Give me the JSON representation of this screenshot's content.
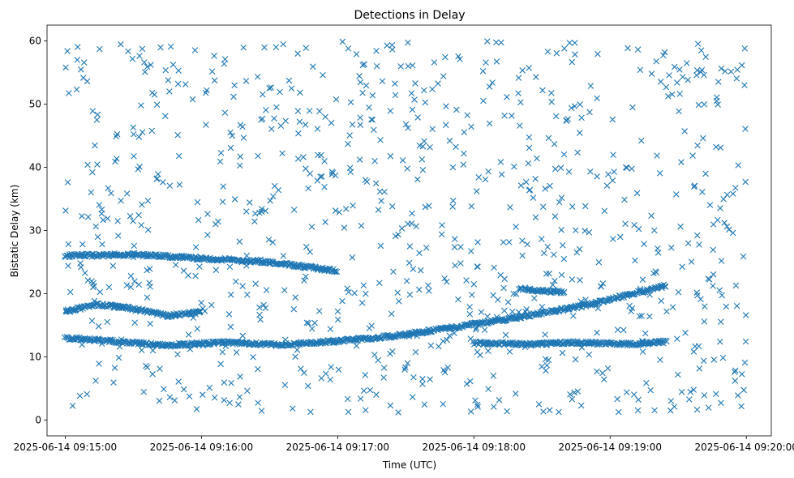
{
  "chart_data": {
    "type": "scatter",
    "title": "Detections in Delay",
    "xlabel": "Time (UTC)",
    "ylabel": "Bistatic Delay (km)",
    "marker": "x",
    "color": "#1f77b4",
    "grid": false,
    "ylim": [
      -2.5,
      62.5
    ],
    "xlim": [
      "2025-06-14 09:14:52",
      "2025-06-14 09:20:11"
    ],
    "x_ticks": [
      "2025-06-14 09:15:00",
      "2025-06-14 09:16:00",
      "2025-06-14 09:17:00",
      "2025-06-14 09:18:00",
      "2025-06-14 09:19:00",
      "2025-06-14 09:20:00"
    ],
    "y_ticks": [
      0,
      10,
      20,
      30,
      40,
      50,
      60
    ],
    "tracks": [
      {
        "x": [
          "2025-06-14 09:15:00",
          "2025-06-14 09:15:20",
          "2025-06-14 09:15:45",
          "2025-06-14 09:16:10",
          "2025-06-14 09:16:35",
          "2025-06-14 09:17:00",
          "2025-06-14 09:17:25",
          "2025-06-14 09:17:50",
          "2025-06-14 09:18:20",
          "2025-06-14 09:18:50",
          "2025-06-14 09:19:25"
        ],
        "y": [
          13.0,
          12.5,
          11.8,
          12.3,
          11.9,
          12.5,
          13.3,
          14.6,
          16.3,
          18.2,
          21.3
        ]
      },
      {
        "x": [
          "2025-06-14 09:15:00",
          "2025-06-14 09:15:15",
          "2025-06-14 09:15:30",
          "2025-06-14 09:15:45",
          "2025-06-14 09:16:00"
        ],
        "y": [
          17.2,
          18.3,
          17.6,
          16.5,
          17.1
        ]
      },
      {
        "x": [
          "2025-06-14 09:15:00",
          "2025-06-14 09:15:30",
          "2025-06-14 09:16:00",
          "2025-06-14 09:16:30",
          "2025-06-14 09:17:00"
        ],
        "y": [
          26.0,
          26.2,
          25.6,
          25.0,
          23.6
        ]
      },
      {
        "x": [
          "2025-06-14 09:18:00",
          "2025-06-14 09:18:25",
          "2025-06-14 09:18:45",
          "2025-06-14 09:19:10",
          "2025-06-14 09:19:25"
        ],
        "y": [
          12.2,
          12.0,
          12.3,
          12.0,
          12.4
        ]
      },
      {
        "x": [
          "2025-06-14 09:18:20",
          "2025-06-14 09:18:40"
        ],
        "y": [
          20.8,
          20.2
        ]
      }
    ],
    "scatter_x_range": [
      "2025-06-14 09:15:00",
      "2025-06-14 09:20:00"
    ],
    "scatter_y_range": [
      1,
      60
    ]
  }
}
